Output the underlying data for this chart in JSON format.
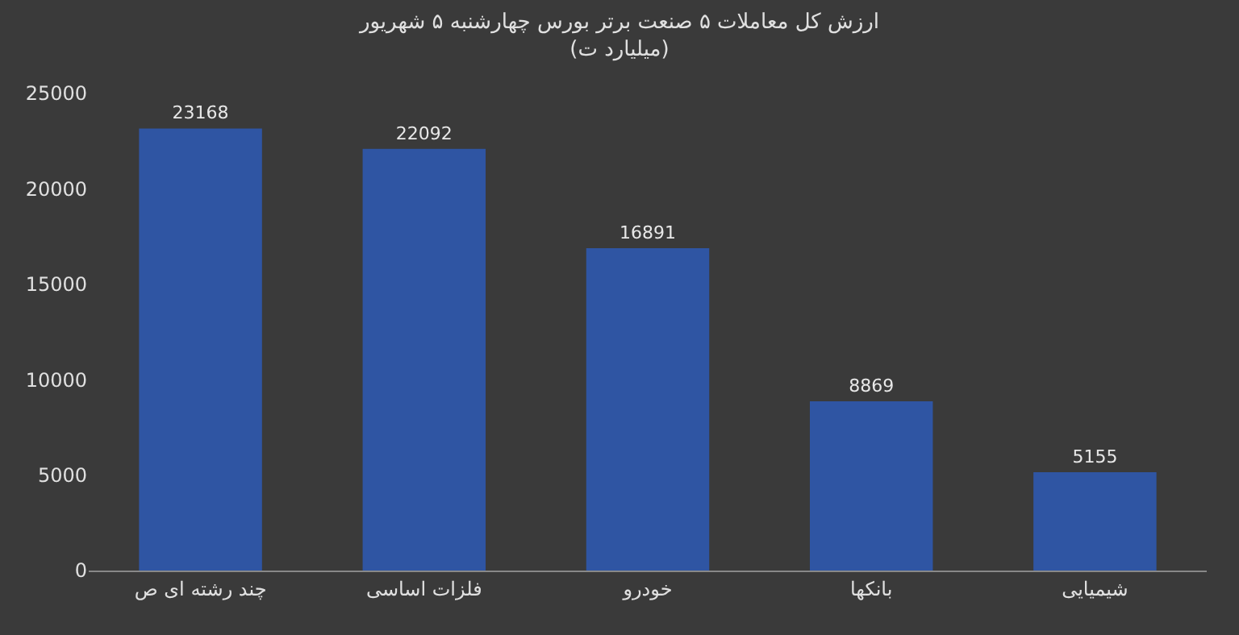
{
  "chart_data": {
    "type": "bar",
    "title": "ارزش کل معاملات ۵ صنعت برتر بورس چهارشنبه ۵ شهریور (میلیارد ت)",
    "categories": [
      "چند رشته ای ص",
      "فلزات اساسی",
      "خودرو",
      "بانکها",
      "شیمیایی"
    ],
    "values": [
      23168,
      22092,
      16891,
      8869,
      5155
    ],
    "color": "#2f55a3",
    "ylim": [
      0,
      25000
    ],
    "yticks": [
      0,
      5000,
      10000,
      15000,
      20000,
      25000
    ],
    "grid": false,
    "data_labels": true
  }
}
